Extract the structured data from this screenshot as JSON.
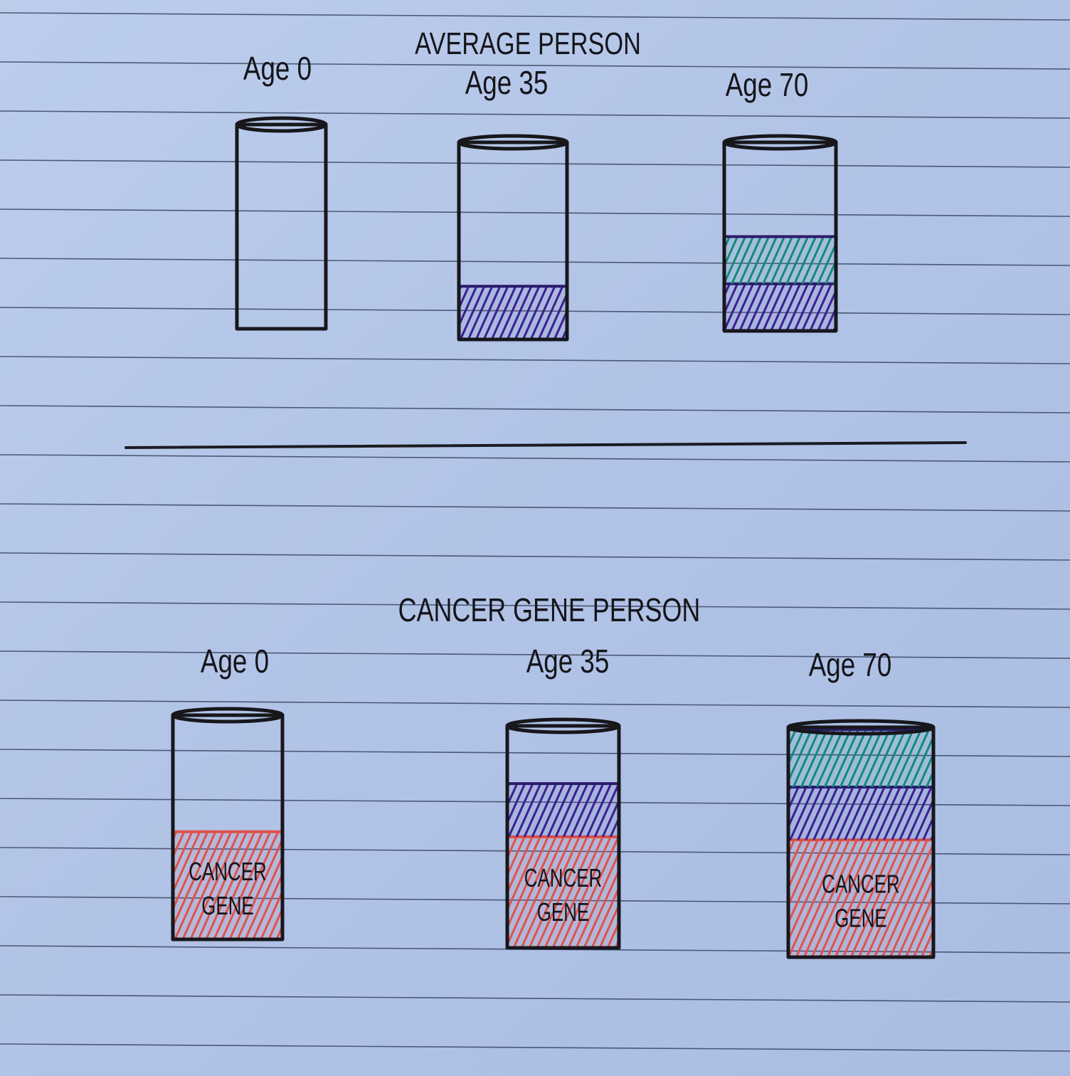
{
  "sections": [
    {
      "title": "AVERAGE PERSON",
      "cups": [
        {
          "label": "Age 0",
          "segments": []
        },
        {
          "label": "Age 35",
          "segments": [
            {
              "color": "#3b1f8f",
              "fraction": 0.27
            }
          ]
        },
        {
          "label": "Age 70",
          "segments": [
            {
              "color": "#3b1f8f",
              "fraction": 0.25
            },
            {
              "color": "#138a78",
              "fraction": 0.25
            }
          ]
        }
      ]
    },
    {
      "title": "CANCER GENE PERSON",
      "cups": [
        {
          "label": "Age 0",
          "segments": [
            {
              "color": "#e0524a",
              "fraction": 0.48,
              "text": [
                "CANCER",
                "GENE"
              ]
            }
          ]
        },
        {
          "label": "Age 35",
          "segments": [
            {
              "color": "#e0524a",
              "fraction": 0.5,
              "text": [
                "CANCER",
                "GENE"
              ]
            },
            {
              "color": "#3b1f8f",
              "fraction": 0.24
            }
          ]
        },
        {
          "label": "Age 70",
          "segments": [
            {
              "color": "#e0524a",
              "fraction": 0.51,
              "text": [
                "CANCER",
                "GENE"
              ]
            },
            {
              "color": "#3b1f8f",
              "fraction": 0.23
            },
            {
              "color": "#138a78",
              "fraction": 0.25
            }
          ]
        }
      ]
    }
  ]
}
